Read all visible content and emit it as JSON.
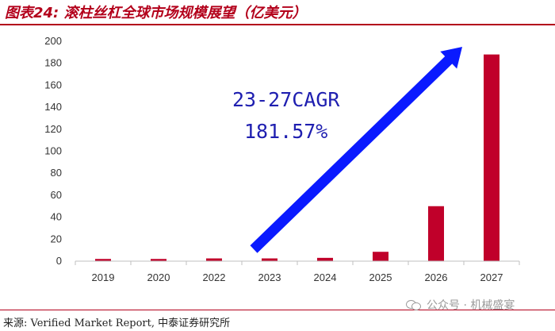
{
  "title": "图表24: 滚柱丝杠全球市场规模展望（亿美元）",
  "source": "来源: Verified Market Report, 中泰证券研究所",
  "watermark": "公众号 · 机械盛宴",
  "colors": {
    "bar": "#c0002a",
    "accent": "#b3001b",
    "arrow": "#0a1aff",
    "annotation": "#1f1fb0"
  },
  "chart_data": {
    "type": "bar",
    "categories": [
      "2019",
      "2020",
      "2022",
      "2023",
      "2024",
      "2025",
      "2026",
      "2027"
    ],
    "values": [
      2,
      2,
      2.5,
      2.5,
      3,
      8.5,
      50,
      188
    ],
    "ylim": [
      0,
      200
    ],
    "yticks": [
      0,
      20,
      40,
      60,
      80,
      100,
      120,
      140,
      160,
      180,
      200
    ],
    "grid": false,
    "annotation": {
      "line1": "23-27CAGR",
      "line2": "181.57%"
    }
  }
}
